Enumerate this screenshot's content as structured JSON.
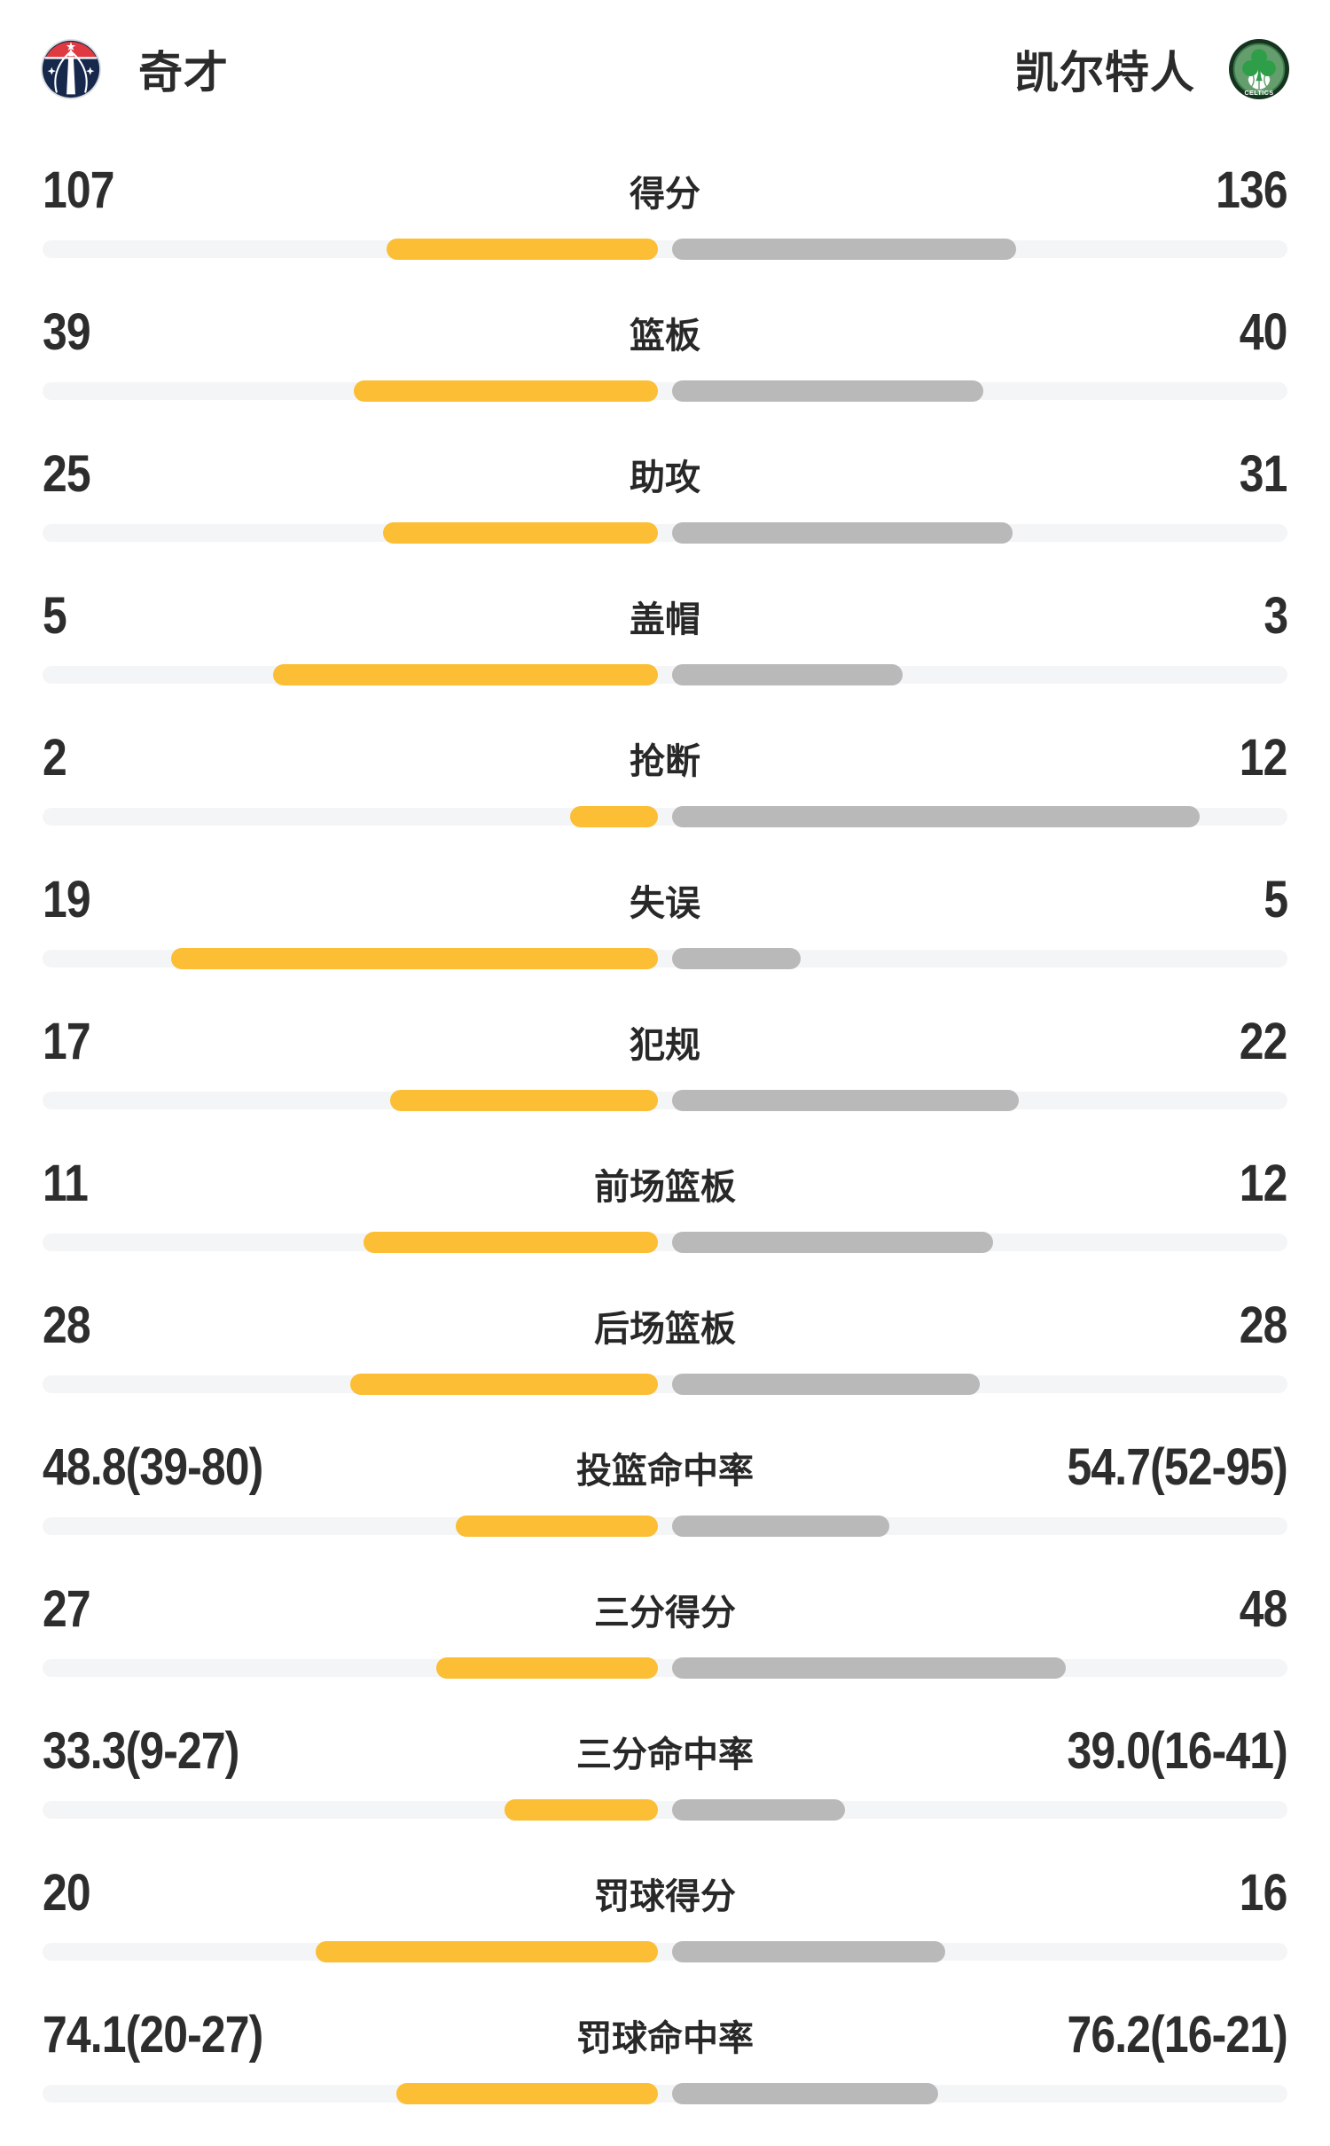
{
  "header": {
    "home_team": {
      "name": "奇才",
      "logo": "wizards-logo"
    },
    "away_team": {
      "name": "凯尔特人",
      "logo": "celtics-logo"
    }
  },
  "colors": {
    "home_bar": "#FBBE34",
    "away_bar": "#B9B9B9",
    "bar_track": "#F4F5F7",
    "text": "#2B2B2B",
    "wizards_navy": "#16284C",
    "wizards_red": "#DF3A41",
    "celtics_dark_green": "#15331E",
    "celtics_green": "#2F9E48"
  },
  "chart_data": {
    "type": "bar",
    "layout": "head-to-head horizontal bars extending left (home, yellow) and right (away, grey) from center; counting stats scaled by share of the two-team total, percentage stats scaled as pct/(pct+100)",
    "teams": [
      "奇才",
      "凯尔特人"
    ],
    "legend_position": "top header row",
    "grid": false,
    "rows": [
      {
        "label": "得分",
        "left": "107",
        "right": "136",
        "left_value": 107,
        "right_value": 136,
        "scale": "share-of-total"
      },
      {
        "label": "篮板",
        "left": "39",
        "right": "40",
        "left_value": 39,
        "right_value": 40,
        "scale": "share-of-total"
      },
      {
        "label": "助攻",
        "left": "25",
        "right": "31",
        "left_value": 25,
        "right_value": 31,
        "scale": "share-of-total"
      },
      {
        "label": "盖帽",
        "left": "5",
        "right": "3",
        "left_value": 5,
        "right_value": 3,
        "scale": "share-of-total"
      },
      {
        "label": "抢断",
        "left": "2",
        "right": "12",
        "left_value": 2,
        "right_value": 12,
        "scale": "share-of-total"
      },
      {
        "label": "失误",
        "left": "19",
        "right": "5",
        "left_value": 19,
        "right_value": 5,
        "scale": "share-of-total"
      },
      {
        "label": "犯规",
        "left": "17",
        "right": "22",
        "left_value": 17,
        "right_value": 22,
        "scale": "share-of-total"
      },
      {
        "label": "前场篮板",
        "left": "11",
        "right": "12",
        "left_value": 11,
        "right_value": 12,
        "scale": "share-of-total"
      },
      {
        "label": "后场篮板",
        "left": "28",
        "right": "28",
        "left_value": 28,
        "right_value": 28,
        "scale": "share-of-total"
      },
      {
        "label": "投篮命中率",
        "left": "48.8(39-80)",
        "right": "54.7(52-95)",
        "left_value": 48.8,
        "right_value": 54.7,
        "scale": "percent"
      },
      {
        "label": "三分得分",
        "left": "27",
        "right": "48",
        "left_value": 27,
        "right_value": 48,
        "scale": "share-of-total"
      },
      {
        "label": "三分命中率",
        "left": "33.3(9-27)",
        "right": "39.0(16-41)",
        "left_value": 33.3,
        "right_value": 39.0,
        "scale": "percent"
      },
      {
        "label": "罚球得分",
        "left": "20",
        "right": "16",
        "left_value": 20,
        "right_value": 16,
        "scale": "share-of-total"
      },
      {
        "label": "罚球命中率",
        "left": "74.1(20-27)",
        "right": "76.2(16-21)",
        "left_value": 74.1,
        "right_value": 76.2,
        "scale": "percent"
      }
    ]
  }
}
